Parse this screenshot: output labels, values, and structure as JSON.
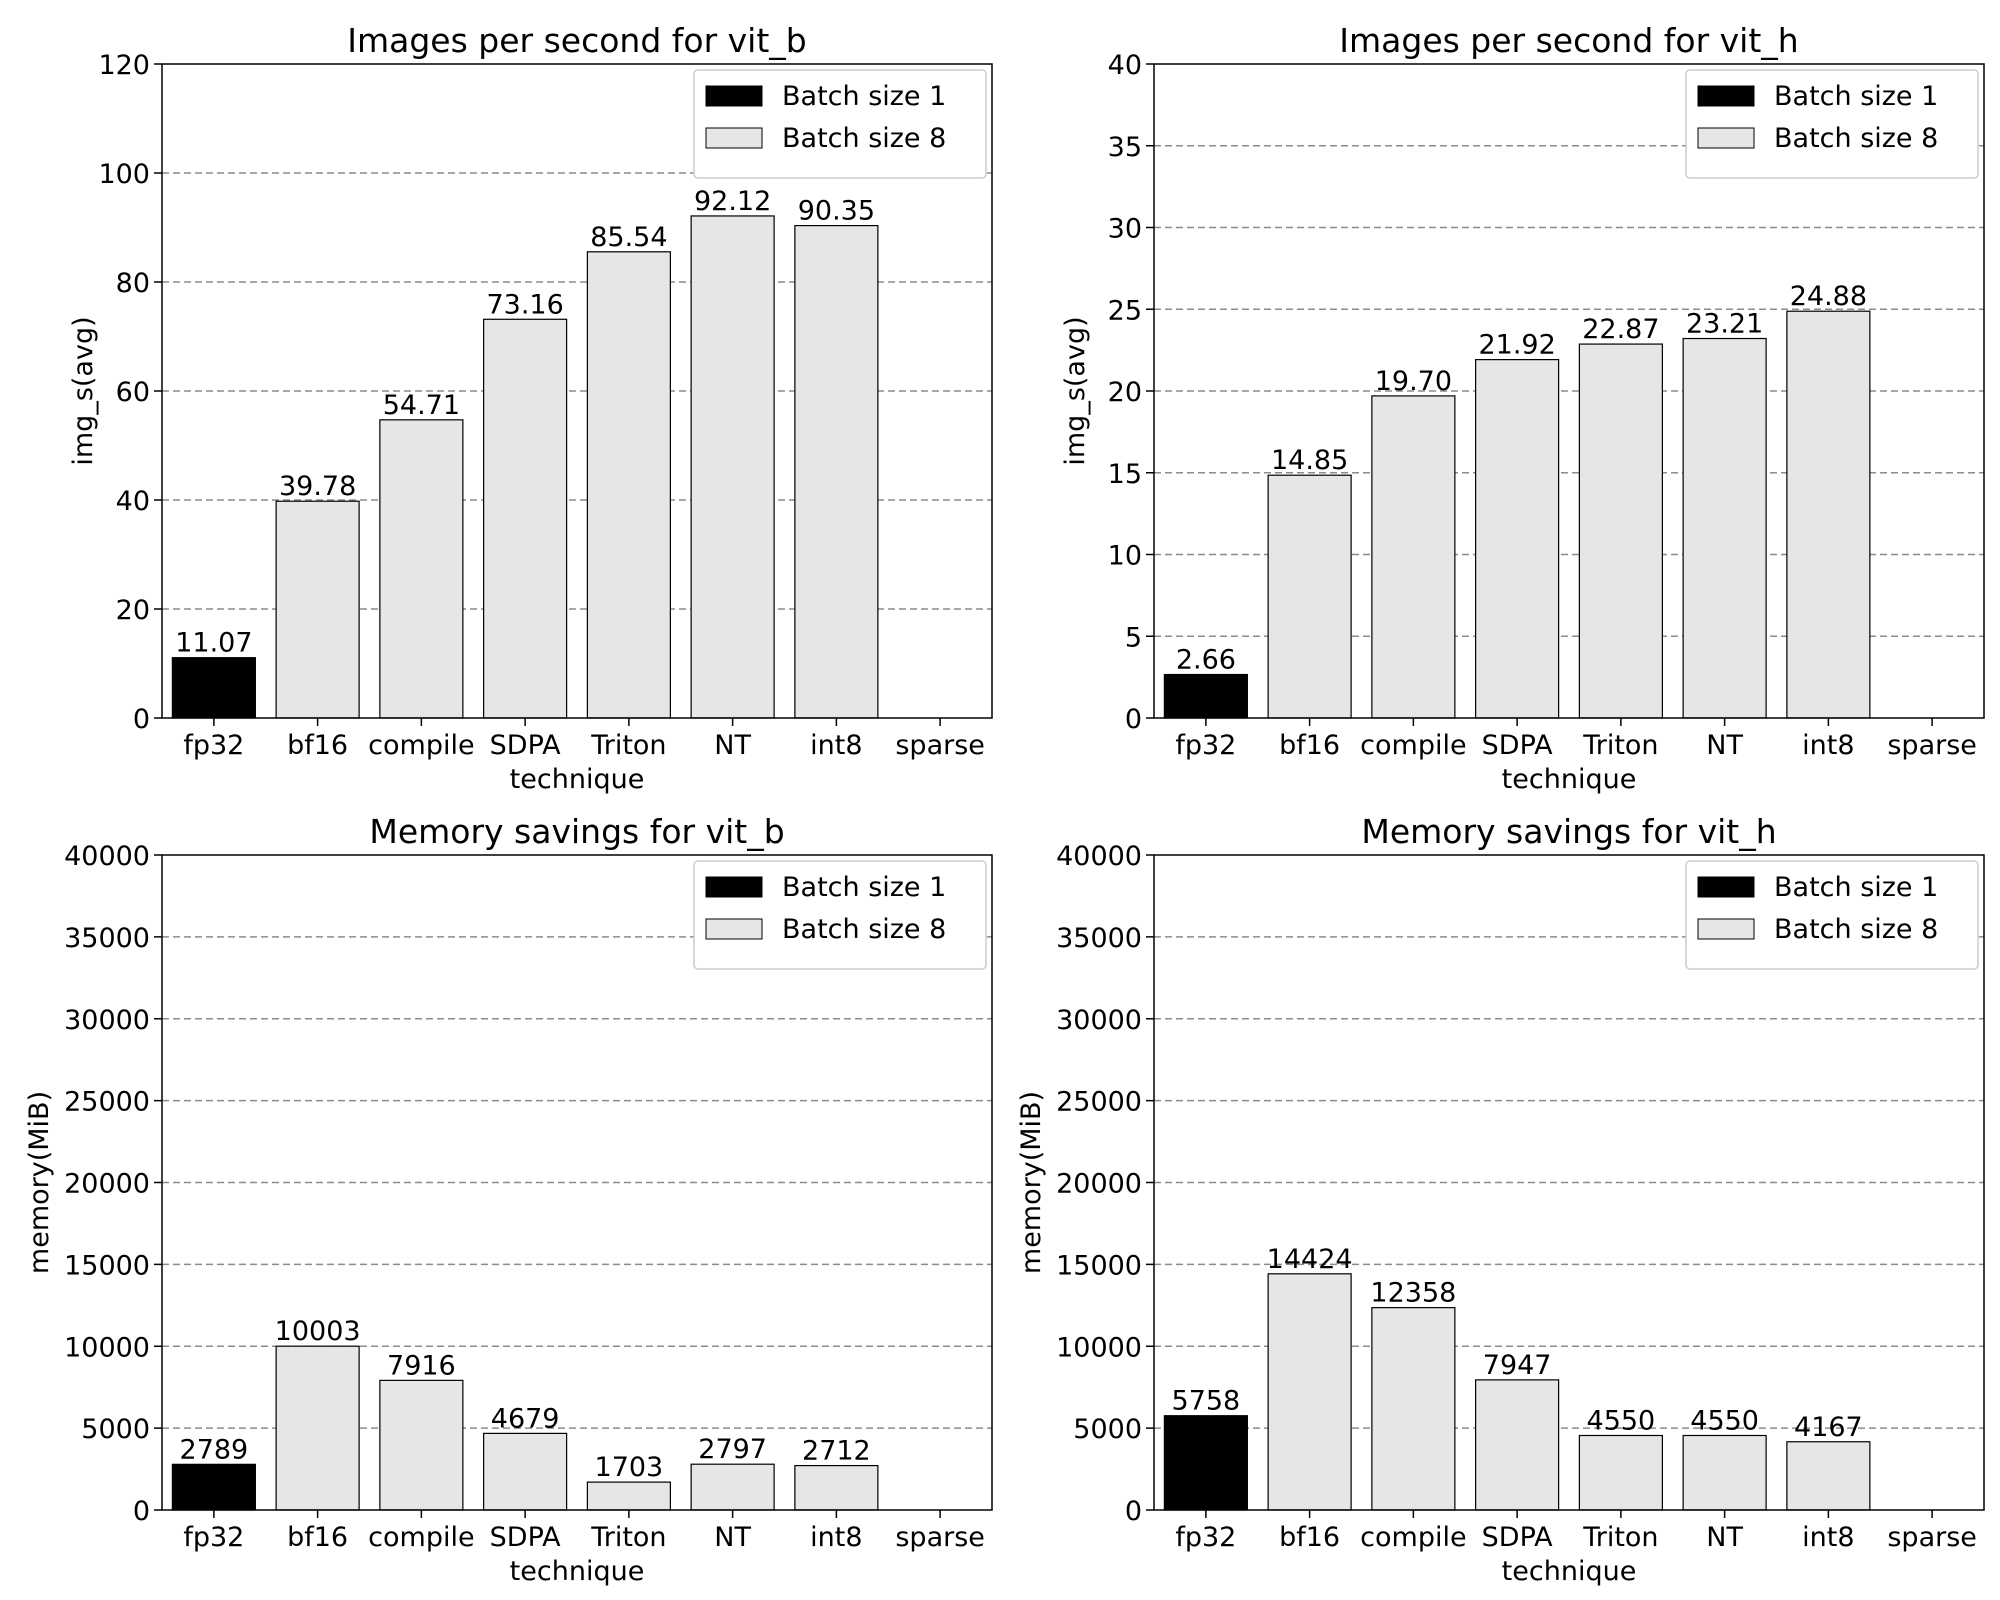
{
  "chart_data": [
    {
      "type": "bar",
      "title": "Images per second for vit_b",
      "xlabel": "technique",
      "ylabel": "img_s(avg)",
      "ylim": [
        0,
        120
      ],
      "yticks": [
        0,
        20,
        40,
        60,
        80,
        100,
        120
      ],
      "grid": "horizontal dashed",
      "legend_position": "top-right",
      "categories": [
        "fp32",
        "bf16",
        "compile",
        "SDPA",
        "Triton",
        "NT",
        "int8",
        "sparse"
      ],
      "series": [
        {
          "name": "Batch size 1",
          "color": "#000000",
          "values": [
            11.07,
            null,
            null,
            null,
            null,
            null,
            null,
            null
          ],
          "labels": [
            "11.07",
            null,
            null,
            null,
            null,
            null,
            null,
            null
          ]
        },
        {
          "name": "Batch size 8",
          "color": "#e6e6e6",
          "values": [
            null,
            39.78,
            54.71,
            73.16,
            85.54,
            92.12,
            90.35,
            null
          ],
          "labels": [
            null,
            "39.78",
            "54.71",
            "73.16",
            "85.54",
            "92.12",
            "90.35",
            null
          ]
        }
      ]
    },
    {
      "type": "bar",
      "title": "Images per second for vit_h",
      "xlabel": "technique",
      "ylabel": "img_s(avg)",
      "ylim": [
        0,
        40
      ],
      "yticks": [
        0,
        5,
        10,
        15,
        20,
        25,
        30,
        35,
        40
      ],
      "grid": "horizontal dashed",
      "legend_position": "top-right",
      "categories": [
        "fp32",
        "bf16",
        "compile",
        "SDPA",
        "Triton",
        "NT",
        "int8",
        "sparse"
      ],
      "series": [
        {
          "name": "Batch size 1",
          "color": "#000000",
          "values": [
            2.66,
            null,
            null,
            null,
            null,
            null,
            null,
            null
          ],
          "labels": [
            "2.66",
            null,
            null,
            null,
            null,
            null,
            null,
            null
          ]
        },
        {
          "name": "Batch size 8",
          "color": "#e6e6e6",
          "values": [
            null,
            14.85,
            19.7,
            21.92,
            22.87,
            23.21,
            24.88,
            null
          ],
          "labels": [
            null,
            "14.85",
            "19.70",
            "21.92",
            "22.87",
            "23.21",
            "24.88",
            null
          ]
        }
      ]
    },
    {
      "type": "bar",
      "title": "Memory savings for vit_b",
      "xlabel": "technique",
      "ylabel": "memory(MiB)",
      "ylim": [
        0,
        40000
      ],
      "yticks": [
        0,
        5000,
        10000,
        15000,
        20000,
        25000,
        30000,
        35000,
        40000
      ],
      "grid": "horizontal dashed",
      "legend_position": "top-right",
      "categories": [
        "fp32",
        "bf16",
        "compile",
        "SDPA",
        "Triton",
        "NT",
        "int8",
        "sparse"
      ],
      "series": [
        {
          "name": "Batch size 1",
          "color": "#000000",
          "values": [
            2789,
            null,
            null,
            null,
            null,
            null,
            null,
            null
          ],
          "labels": [
            "2789",
            null,
            null,
            null,
            null,
            null,
            null,
            null
          ]
        },
        {
          "name": "Batch size 8",
          "color": "#e6e6e6",
          "values": [
            null,
            10003,
            7916,
            4679,
            1703,
            2797,
            2712,
            null
          ],
          "labels": [
            null,
            "10003",
            "7916",
            "4679",
            "1703",
            "2797",
            "2712",
            null
          ]
        }
      ]
    },
    {
      "type": "bar",
      "title": "Memory savings for vit_h",
      "xlabel": "technique",
      "ylabel": "memory(MiB)",
      "ylim": [
        0,
        40000
      ],
      "yticks": [
        0,
        5000,
        10000,
        15000,
        20000,
        25000,
        30000,
        35000,
        40000
      ],
      "grid": "horizontal dashed",
      "legend_position": "top-right",
      "categories": [
        "fp32",
        "bf16",
        "compile",
        "SDPA",
        "Triton",
        "NT",
        "int8",
        "sparse"
      ],
      "series": [
        {
          "name": "Batch size 1",
          "color": "#000000",
          "values": [
            5758,
            null,
            null,
            null,
            null,
            null,
            null,
            null
          ],
          "labels": [
            "5758",
            null,
            null,
            null,
            null,
            null,
            null,
            null
          ]
        },
        {
          "name": "Batch size 8",
          "color": "#e6e6e6",
          "values": [
            null,
            14424,
            12358,
            7947,
            4550,
            4550,
            4167,
            null
          ],
          "labels": [
            null,
            "14424",
            "12358",
            "7947",
            "4550",
            "4550",
            "4167",
            null
          ]
        }
      ]
    }
  ]
}
